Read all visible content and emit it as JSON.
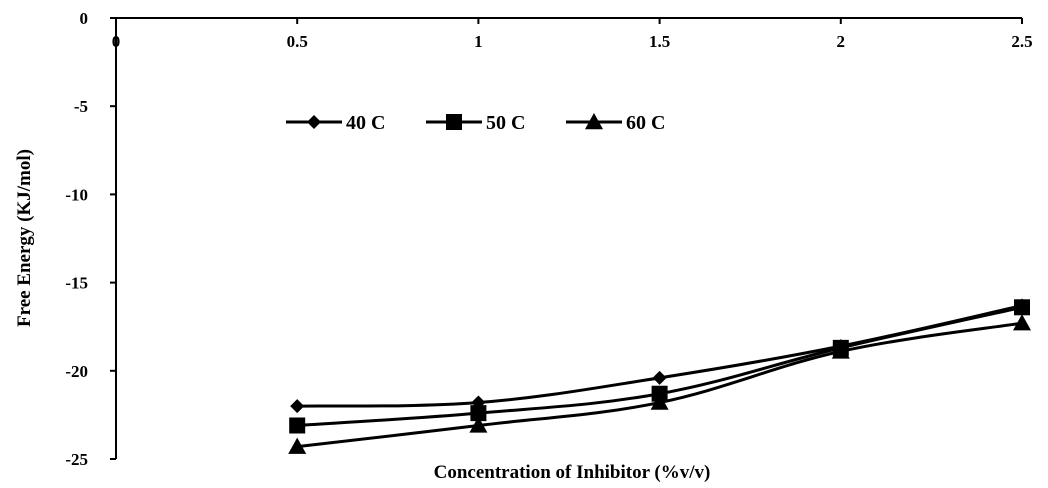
{
  "chart_data": {
    "type": "line",
    "xlabel": "Concentration of Inhibitor (%v/v)",
    "ylabel": "Free Energy (KJ/mol)",
    "xlim": [
      0,
      2.5
    ],
    "ylim": [
      -25,
      0
    ],
    "xticks": [
      "0",
      "0.5",
      "1",
      "1.5",
      "2",
      "2.5"
    ],
    "yticks": [
      "0",
      "-5",
      "-10",
      "-15",
      "-20",
      "-25"
    ],
    "x_axis_position": "top",
    "grid": false,
    "legend_position": "top-left",
    "x": [
      0.5,
      1,
      1.5,
      2,
      2.5
    ],
    "series": [
      {
        "name": "40 C",
        "marker": "diamond",
        "values": [
          -22.0,
          -21.8,
          -20.4,
          -18.6,
          -16.3
        ]
      },
      {
        "name": "50 C",
        "marker": "square",
        "values": [
          -23.1,
          -22.4,
          -21.3,
          -18.7,
          -16.4
        ]
      },
      {
        "name": "60 C",
        "marker": "triangle",
        "values": [
          -24.3,
          -23.1,
          -21.8,
          -18.9,
          -17.3
        ]
      }
    ],
    "line_color": "#000000"
  }
}
